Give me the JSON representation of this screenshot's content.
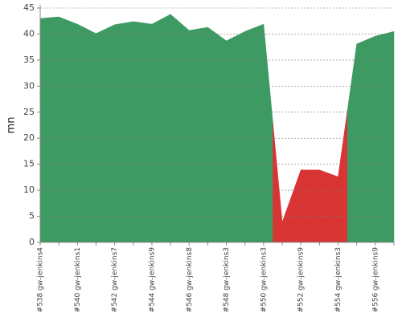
{
  "chart_data": {
    "type": "area",
    "ylabel": "mn",
    "categories": [
      "#538 gw-jenkins4",
      null,
      "#540 gw-jenkins1",
      null,
      "#542 gw-jenkins7",
      null,
      "#544 gw-jenkins9",
      null,
      "#546 gw-jenkins8",
      null,
      "#548 gw-jenkins3",
      null,
      "#550 gw-jenkins3",
      null,
      "#552 gw-jenkins9",
      null,
      "#554 gw-jenkins3",
      null,
      "#556 gw-jenkins9",
      null
    ],
    "values": [
      43.0,
      43.3,
      41.9,
      40.1,
      41.8,
      42.4,
      41.9,
      43.8,
      40.7,
      41.3,
      38.7,
      40.5,
      41.9,
      3.9,
      13.9,
      13.9,
      12.6,
      38.1,
      39.6,
      40.5
    ],
    "colors": [
      "#3d9a63",
      "#3d9a63",
      "#3d9a63",
      "#3d9a63",
      "#3d9a63",
      "#3d9a63",
      "#3d9a63",
      "#3d9a63",
      "#3d9a63",
      "#3d9a63",
      "#3d9a63",
      "#3d9a63",
      "#3d9a63",
      "#d93434",
      "#d93434",
      "#d93434",
      "#d93434",
      "#3d9a63",
      "#3d9a63",
      "#3d9a63"
    ],
    "ylim": [
      0,
      45
    ],
    "yticks": [
      0,
      5,
      10,
      15,
      20,
      25,
      30,
      35,
      40,
      45
    ],
    "grid": true
  }
}
